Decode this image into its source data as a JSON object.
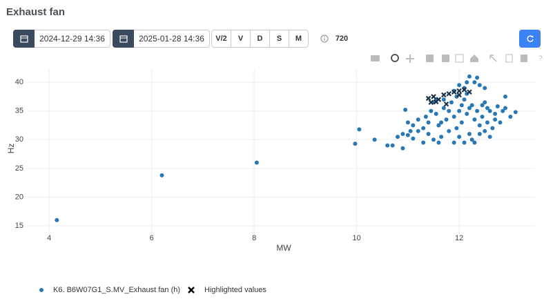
{
  "header": {
    "title": "Exhaust fan"
  },
  "toolbar": {
    "start_date": "2024-12-29 14:36",
    "end_date": "2025-01-28 14:36",
    "buttons": [
      "V/2",
      "V",
      "D",
      "S",
      "M"
    ],
    "count": 720
  },
  "chart_data": {
    "type": "scatter",
    "x_label": "MW",
    "y_label": "Hz",
    "xlim": [
      3.58,
      13.48
    ],
    "ylim": [
      13.44,
      42.3
    ],
    "xticks": [
      4,
      6,
      8,
      10,
      12
    ],
    "yticks": [
      15,
      20,
      25,
      30,
      35,
      40
    ],
    "grid": true,
    "series": [
      {
        "name": "K6. B6W07G1_S.MV_Exhaust fan (h)",
        "color": "#2878b5",
        "marker": "circle",
        "x": [
          4.15,
          6.2,
          8.05,
          9.97,
          10.05,
          10.35,
          10.6,
          10.7,
          10.9,
          10.95,
          10.8,
          10.9,
          11.0,
          11.05,
          11.1,
          11.2,
          11.3,
          11.35,
          11.4,
          11.45,
          11.5,
          11.55,
          11.6,
          11.65,
          11.7,
          11.75,
          11.8,
          11.85,
          11.9,
          11.95,
          12.0,
          12.05,
          12.1,
          12.15,
          12.2,
          12.25,
          12.3,
          12.35,
          12.4,
          12.45,
          12.5,
          12.55,
          12.6,
          12.65,
          12.7,
          12.8,
          12.9,
          13.0,
          13.1,
          12.9,
          12.3,
          12.2,
          12.35,
          12.1,
          12.0,
          12.4,
          12.5,
          11.9,
          12.15,
          11.6,
          11.9,
          12.1,
          12.3,
          12.6,
          11.3,
          11.5,
          12.0,
          11.2,
          11.0,
          12.2,
          12.05,
          11.8,
          11.7,
          11.65,
          12.45,
          12.55,
          12.75,
          12.85,
          12.4,
          12.5,
          11.4,
          11.1,
          12.25,
          12.7,
          11.55,
          11.95,
          12.15
        ],
        "y": [
          16,
          23.8,
          26,
          29.3,
          31.8,
          30,
          29,
          29,
          28.5,
          35.2,
          30.5,
          31,
          30.8,
          31.5,
          30.2,
          31.5,
          32,
          34,
          33,
          35,
          36.5,
          34.5,
          32.5,
          30.5,
          35.5,
          33.5,
          31.5,
          36.5,
          34,
          32,
          35,
          33,
          37,
          34.5,
          31,
          36,
          33.5,
          35,
          32.5,
          34,
          36.5,
          33,
          35,
          32,
          34.5,
          33,
          35.5,
          34,
          34.8,
          37.5,
          40,
          41,
          40.8,
          39,
          39.5,
          39.5,
          39,
          38.5,
          38,
          29.5,
          29.5,
          29.5,
          29.5,
          30.5,
          29.5,
          30,
          30.5,
          33.5,
          33,
          35.5,
          36,
          35,
          37,
          33,
          36,
          35.5,
          35.8,
          35,
          31,
          31.5,
          31,
          32.5,
          30,
          33.5,
          37,
          37.5,
          40
        ]
      },
      {
        "name": "Highlighted values",
        "color": "#1c3347",
        "marker": "x",
        "x": [
          11.4,
          11.5,
          11.6,
          11.7,
          11.8,
          11.9,
          12.0,
          12.1,
          12.2,
          11.55,
          11.75,
          12.0,
          11.45
        ],
        "y": [
          37.2,
          37.5,
          37,
          37.8,
          38,
          38.3,
          38.5,
          38.7,
          38.3,
          36.6,
          36.2,
          37.8,
          36.5
        ]
      }
    ]
  }
}
